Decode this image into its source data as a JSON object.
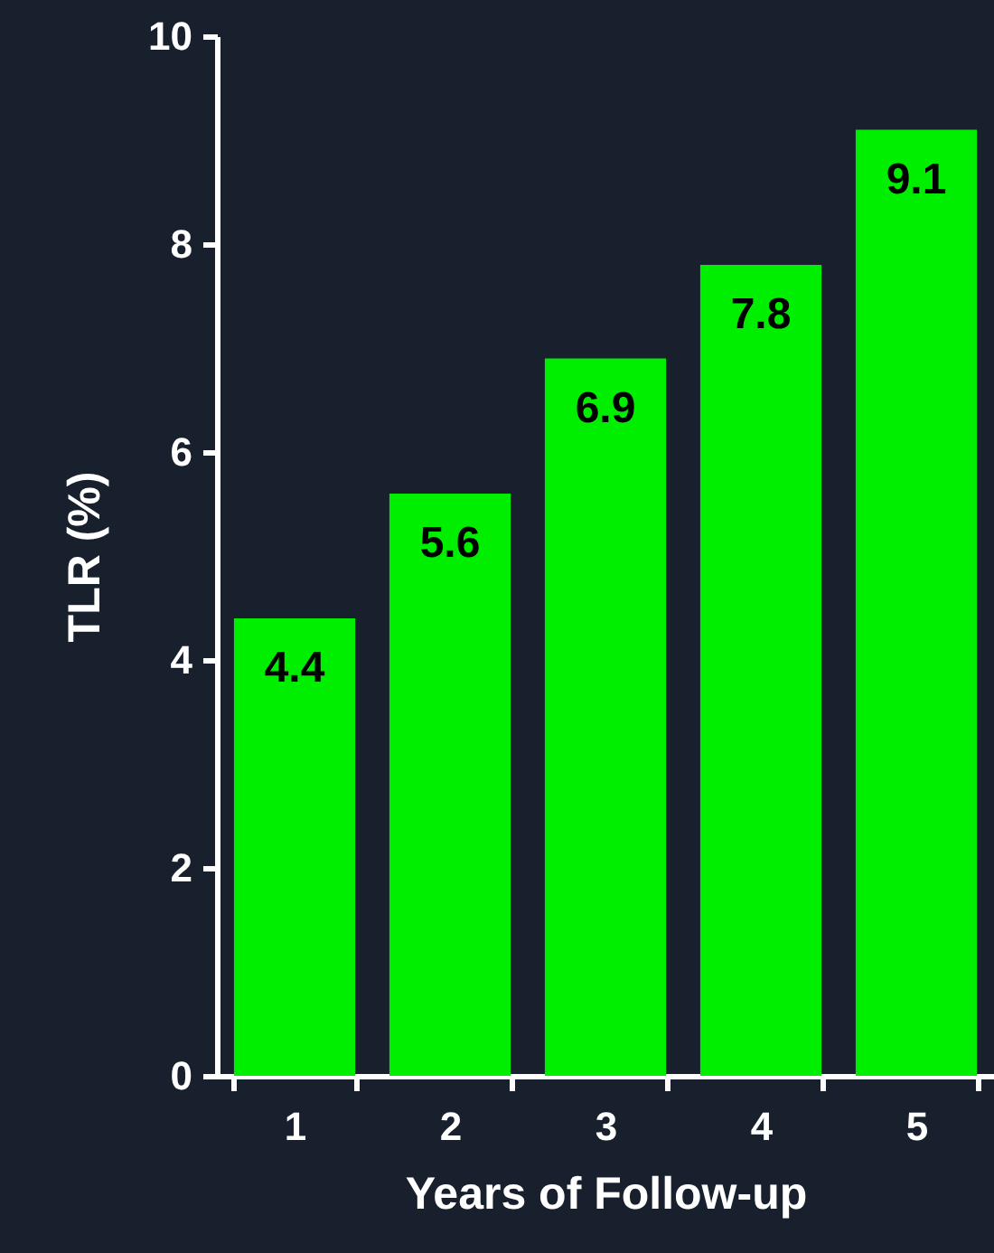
{
  "chart_data": {
    "type": "bar",
    "xlabel": "Years of Follow-up",
    "ylabel": "TLR (%)",
    "categories": [
      "1",
      "2",
      "3",
      "4",
      "5"
    ],
    "values": [
      4.4,
      5.6,
      6.9,
      7.8,
      9.1
    ],
    "color": "#00ee00",
    "ylim": [
      0,
      10
    ],
    "yticks": [
      0,
      2,
      4,
      6,
      8,
      10
    ],
    "grid": false,
    "data_labels": true
  }
}
